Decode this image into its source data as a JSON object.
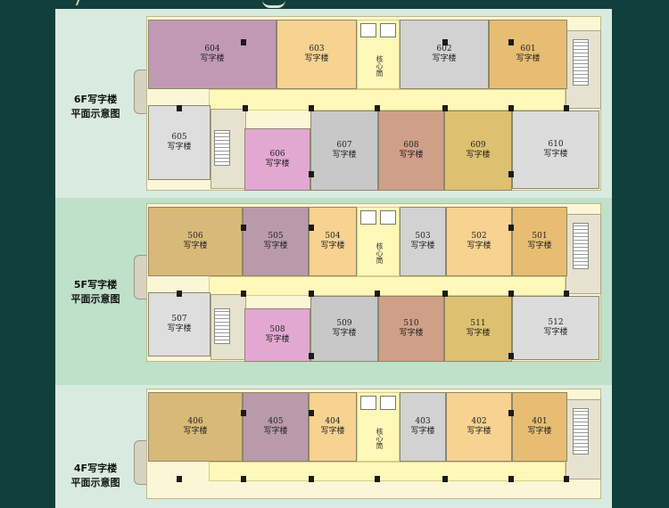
{
  "floors": [
    {
      "label_line1": "6F写字楼",
      "label_line2": "平面示意图",
      "lobby": "核心筒",
      "units": [
        {
          "num": "604",
          "type": "写字楼",
          "color": "#c199b5"
        },
        {
          "num": "603",
          "type": "写字楼",
          "color": "#f7d291"
        },
        {
          "num": "602",
          "type": "写字楼",
          "color": "#d2d2d2"
        },
        {
          "num": "601",
          "type": "写字楼",
          "color": "#e7bd73"
        },
        {
          "num": "605",
          "type": "写字楼",
          "color": "#dedede"
        },
        {
          "num": "606",
          "type": "写字楼",
          "color": "#e2a8d2"
        },
        {
          "num": "607",
          "type": "写字楼",
          "color": "#c8c8c8"
        },
        {
          "num": "608",
          "type": "写字楼",
          "color": "#cf9f88"
        },
        {
          "num": "609",
          "type": "写字楼",
          "color": "#ddc070"
        },
        {
          "num": "610",
          "type": "写字楼",
          "color": "#dcdcdc"
        }
      ]
    },
    {
      "label_line1": "5F写字楼",
      "label_line2": "平面示意图",
      "lobby": "核心筒",
      "units": [
        {
          "num": "506",
          "type": "写字楼",
          "color": "#d8b977"
        },
        {
          "num": "505",
          "type": "写字楼",
          "color": "#b99aaa"
        },
        {
          "num": "504",
          "type": "写字楼",
          "color": "#f7d291"
        },
        {
          "num": "503",
          "type": "写字楼",
          "color": "#d2d2d2"
        },
        {
          "num": "502",
          "type": "写字楼",
          "color": "#f7d291"
        },
        {
          "num": "501",
          "type": "写字楼",
          "color": "#e7bd73"
        },
        {
          "num": "507",
          "type": "写字楼",
          "color": "#dedede"
        },
        {
          "num": "508",
          "type": "写字楼",
          "color": "#e2a8d2"
        },
        {
          "num": "509",
          "type": "写字楼",
          "color": "#c8c8c8"
        },
        {
          "num": "510",
          "type": "写字楼",
          "color": "#cf9f88"
        },
        {
          "num": "511",
          "type": "写字楼",
          "color": "#ddc070"
        },
        {
          "num": "512",
          "type": "写字楼",
          "color": "#dcdcdc"
        }
      ]
    },
    {
      "label_line1": "4F写字楼",
      "label_line2": "平面示意图",
      "lobby": "核心筒",
      "units": [
        {
          "num": "406",
          "type": "写字楼",
          "color": "#d8b977"
        },
        {
          "num": "405",
          "type": "写字楼",
          "color": "#b99aaa"
        },
        {
          "num": "404",
          "type": "写字楼",
          "color": "#f7d291"
        },
        {
          "num": "403",
          "type": "写字楼",
          "color": "#d2d2d2"
        },
        {
          "num": "402",
          "type": "写字楼",
          "color": "#f7d291"
        },
        {
          "num": "401",
          "type": "写字楼",
          "color": "#e7bd73"
        }
      ]
    }
  ]
}
